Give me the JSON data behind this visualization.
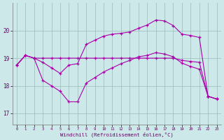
{
  "background_color": "#cce8e8",
  "grid_color": "#99bbbb",
  "line_color": "#aa00aa",
  "xlabel": "Windchill (Refroidissement éolien,°C)",
  "xtick_labels": [
    "0",
    "1",
    "2",
    "3",
    "4",
    "5",
    "6",
    "7",
    "8",
    "9",
    "10",
    "11",
    "12",
    "13",
    "14",
    "15",
    "16",
    "17",
    "18",
    "19",
    "20",
    "21",
    "22",
    "23"
  ],
  "xtick_vals": [
    0,
    1,
    2,
    3,
    4,
    5,
    6,
    7,
    8,
    9,
    10,
    11,
    12,
    13,
    14,
    15,
    16,
    17,
    18,
    19,
    20,
    21,
    22,
    23
  ],
  "ytick_vals": [
    17,
    18,
    19,
    20
  ],
  "xlim": [
    -0.5,
    23.5
  ],
  "ylim": [
    16.6,
    21.0
  ],
  "curve_top_y": [
    18.75,
    19.1,
    19.0,
    18.85,
    18.65,
    18.45,
    18.75,
    18.8,
    19.5,
    19.65,
    19.8,
    19.87,
    19.9,
    19.95,
    20.08,
    20.2,
    20.38,
    20.35,
    20.18,
    19.87,
    19.82,
    19.75,
    17.62,
    17.52
  ],
  "curve_mid_y": [
    18.75,
    19.1,
    19.0,
    19.0,
    19.0,
    19.0,
    19.0,
    19.0,
    19.0,
    19.0,
    19.0,
    19.0,
    19.0,
    19.0,
    19.0,
    19.0,
    19.0,
    19.0,
    19.0,
    18.92,
    18.88,
    18.85,
    17.62,
    17.52
  ],
  "curve_bot_y": [
    18.75,
    19.1,
    19.0,
    18.2,
    18.0,
    17.8,
    17.42,
    17.42,
    18.1,
    18.3,
    18.5,
    18.65,
    18.8,
    18.92,
    19.05,
    19.1,
    19.2,
    19.15,
    19.05,
    18.82,
    18.7,
    18.6,
    17.62,
    17.52
  ]
}
